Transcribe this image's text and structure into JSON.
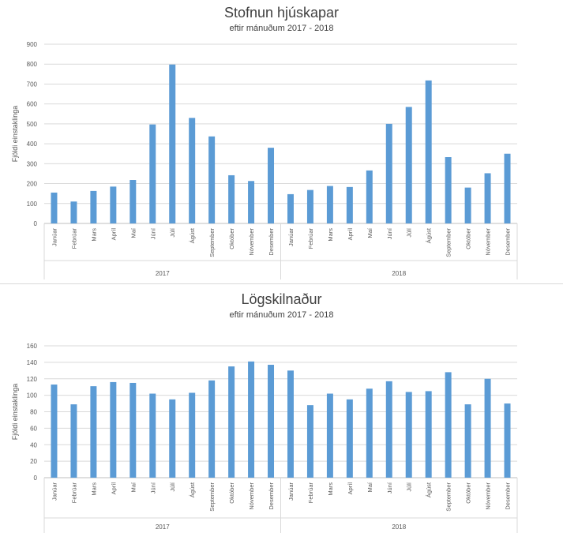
{
  "chart_data": [
    {
      "type": "bar",
      "title": "Stofnun hjúskapar",
      "subtitle": "eftir mánuðum 2017 - 2018",
      "ylabel": "Fjöldi einstaklinga",
      "ylim": [
        0,
        900
      ],
      "yticks": [
        0,
        100,
        200,
        300,
        400,
        500,
        600,
        700,
        800,
        900
      ],
      "grid": true,
      "groups": [
        {
          "name": "2017",
          "categories": [
            "Janúar",
            "Febrúar",
            "Mars",
            "Apríl",
            "Maí",
            "Júní",
            "Júlí",
            "Ágúst",
            "September",
            "Október",
            "Nóvember",
            "Desember"
          ],
          "values": [
            155,
            110,
            163,
            185,
            218,
            497,
            798,
            530,
            437,
            242,
            213,
            380
          ]
        },
        {
          "name": "2018",
          "categories": [
            "Janúar",
            "Febrúar",
            "Mars",
            "Apríl",
            "Maí",
            "Júní",
            "Júlí",
            "Ágúst",
            "September",
            "Október",
            "Nóvember",
            "Desember"
          ],
          "values": [
            147,
            168,
            188,
            183,
            266,
            500,
            585,
            718,
            333,
            180,
            252,
            350
          ]
        }
      ],
      "color": "#5b9bd5"
    },
    {
      "type": "bar",
      "title": "Lögskilnaður",
      "subtitle": "eftir mánuðum 2017 - 2018",
      "ylabel": "Fjöldi einstaklinga",
      "ylim": [
        0,
        160
      ],
      "yticks": [
        0,
        20,
        40,
        60,
        80,
        100,
        120,
        140,
        160
      ],
      "grid": true,
      "groups": [
        {
          "name": "2017",
          "categories": [
            "Janúar",
            "Febrúar",
            "Mars",
            "Apríl",
            "Maí",
            "Júní",
            "Júlí",
            "Ágúst",
            "September",
            "Október",
            "Nóvember",
            "Desember"
          ],
          "values": [
            113,
            89,
            111,
            116,
            115,
            102,
            95,
            103,
            118,
            135,
            141,
            137
          ]
        },
        {
          "name": "2018",
          "categories": [
            "Janúar",
            "Febrúar",
            "Mars",
            "Apríl",
            "Maí",
            "Júní",
            "Júlí",
            "Ágúst",
            "September",
            "Október",
            "Nóvember",
            "Desember"
          ],
          "values": [
            130,
            88,
            102,
            95,
            108,
            117,
            104,
            105,
            128,
            89,
            120,
            90
          ]
        }
      ],
      "color": "#5b9bd5"
    }
  ]
}
